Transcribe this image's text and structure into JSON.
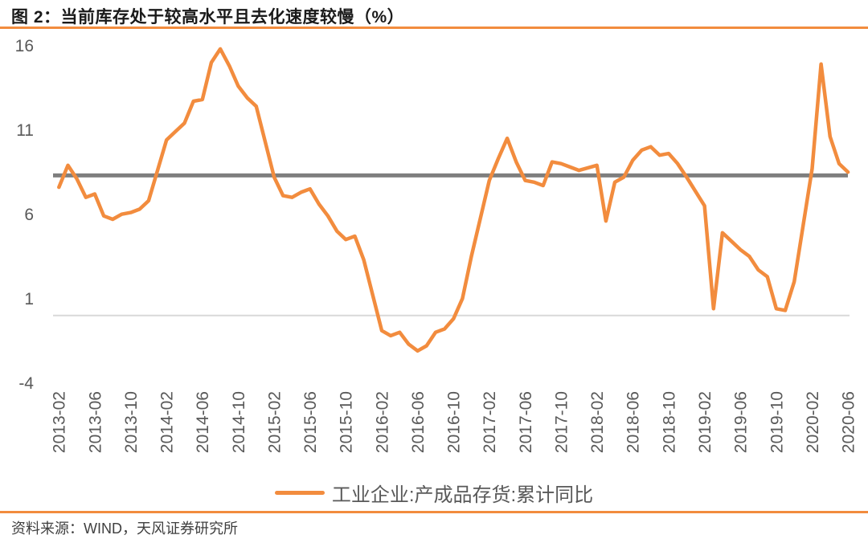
{
  "header": {
    "title": "图 2：当前库存处于较高水平且去化速度较慢（%）"
  },
  "legend": {
    "label": "工业企业:产成品存货:累计同比"
  },
  "footer": {
    "source": "资料来源：WIND，天风证券研究所"
  },
  "colors": {
    "accent_orange": "#F28C3E",
    "reference_gray": "#7F7F7F",
    "zero_line_gray": "#D9D9D9",
    "axis_text": "#595959",
    "title_text": "#1a1a1a",
    "body_text": "#3f3f3f"
  },
  "chart_data": {
    "type": "line",
    "title": "图 2：当前库存处于较高水平且去化速度较慢（%）",
    "unit": "%",
    "ylim": [
      -4,
      16
    ],
    "yticks": [
      16,
      11,
      6,
      1,
      -4
    ],
    "grid": false,
    "zero_line": 0,
    "reference_line": {
      "value": 8.3
    },
    "legend_position": "bottom",
    "xticks": [
      "2013-02",
      "2013-06",
      "2013-10",
      "2014-02",
      "2014-06",
      "2014-10",
      "2015-02",
      "2015-06",
      "2015-10",
      "2016-02",
      "2016-06",
      "2016-10",
      "2017-02",
      "2017-06",
      "2017-10",
      "2018-02",
      "2018-06",
      "2018-10",
      "2019-02",
      "2019-06",
      "2019-10",
      "2020-02",
      "2020-06"
    ],
    "series": [
      {
        "name": "工业企业:产成品存货:累计同比",
        "color": "#F28C3E",
        "points": [
          [
            "2013-02",
            7.6
          ],
          [
            "2013-03",
            8.9
          ],
          [
            "2013-04",
            8.1
          ],
          [
            "2013-05",
            7.0
          ],
          [
            "2013-06",
            7.2
          ],
          [
            "2013-07",
            5.9
          ],
          [
            "2013-08",
            5.7
          ],
          [
            "2013-09",
            6.0
          ],
          [
            "2013-10",
            6.1
          ],
          [
            "2013-11",
            6.3
          ],
          [
            "2013-12",
            6.8
          ],
          [
            "2014-02",
            10.4
          ],
          [
            "2014-03",
            10.9
          ],
          [
            "2014-04",
            11.4
          ],
          [
            "2014-05",
            12.7
          ],
          [
            "2014-06",
            12.8
          ],
          [
            "2014-07",
            15.0
          ],
          [
            "2014-08",
            15.8
          ],
          [
            "2014-09",
            14.8
          ],
          [
            "2014-10",
            13.6
          ],
          [
            "2014-11",
            12.9
          ],
          [
            "2014-12",
            12.4
          ],
          [
            "2015-02",
            8.2
          ],
          [
            "2015-03",
            7.1
          ],
          [
            "2015-04",
            7.0
          ],
          [
            "2015-05",
            7.3
          ],
          [
            "2015-06",
            7.5
          ],
          [
            "2015-07",
            6.6
          ],
          [
            "2015-08",
            5.9
          ],
          [
            "2015-09",
            5.0
          ],
          [
            "2015-10",
            4.5
          ],
          [
            "2015-11",
            4.7
          ],
          [
            "2015-12",
            3.3
          ],
          [
            "2016-02",
            -0.9
          ],
          [
            "2016-03",
            -1.2
          ],
          [
            "2016-04",
            -1.0
          ],
          [
            "2016-05",
            -1.7
          ],
          [
            "2016-06",
            -2.1
          ],
          [
            "2016-07",
            -1.8
          ],
          [
            "2016-08",
            -1.0
          ],
          [
            "2016-09",
            -0.8
          ],
          [
            "2016-10",
            -0.2
          ],
          [
            "2016-11",
            1.0
          ],
          [
            "2016-12",
            3.5
          ],
          [
            "2017-02",
            8.0
          ],
          [
            "2017-03",
            9.3
          ],
          [
            "2017-04",
            10.5
          ],
          [
            "2017-05",
            9.1
          ],
          [
            "2017-06",
            8.0
          ],
          [
            "2017-07",
            7.9
          ],
          [
            "2017-08",
            7.7
          ],
          [
            "2017-09",
            9.1
          ],
          [
            "2017-10",
            9.0
          ],
          [
            "2017-11",
            8.8
          ],
          [
            "2017-12",
            8.6
          ],
          [
            "2018-02",
            8.9
          ],
          [
            "2018-03",
            5.6
          ],
          [
            "2018-04",
            7.9
          ],
          [
            "2018-05",
            8.2
          ],
          [
            "2018-06",
            9.2
          ],
          [
            "2018-07",
            9.8
          ],
          [
            "2018-08",
            10.0
          ],
          [
            "2018-09",
            9.5
          ],
          [
            "2018-10",
            9.6
          ],
          [
            "2018-11",
            9.0
          ],
          [
            "2018-12",
            8.2
          ],
          [
            "2019-02",
            6.5
          ],
          [
            "2019-03",
            0.4
          ],
          [
            "2019-04",
            4.9
          ],
          [
            "2019-05",
            4.4
          ],
          [
            "2019-06",
            3.9
          ],
          [
            "2019-07",
            3.5
          ],
          [
            "2019-08",
            2.7
          ],
          [
            "2019-09",
            2.3
          ],
          [
            "2019-10",
            0.4
          ],
          [
            "2019-11",
            0.3
          ],
          [
            "2019-12",
            2.0
          ],
          [
            "2020-02",
            8.7
          ],
          [
            "2020-03",
            14.9
          ],
          [
            "2020-04",
            10.6
          ],
          [
            "2020-05",
            9.0
          ],
          [
            "2020-06",
            8.5
          ]
        ]
      }
    ]
  }
}
